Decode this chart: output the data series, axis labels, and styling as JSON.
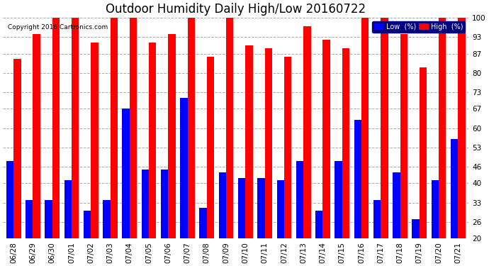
{
  "title": "Outdoor Humidity Daily High/Low 20160722",
  "copyright": "Copyright 2016 Cartronics.com",
  "labels": [
    "06/28",
    "06/29",
    "06/30",
    "07/01",
    "07/02",
    "07/03",
    "07/04",
    "07/05",
    "07/06",
    "07/07",
    "07/08",
    "07/09",
    "07/10",
    "07/11",
    "07/12",
    "07/13",
    "07/14",
    "07/15",
    "07/16",
    "07/17",
    "07/18",
    "07/19",
    "07/20",
    "07/21"
  ],
  "high": [
    85,
    94,
    100,
    100,
    91,
    100,
    100,
    91,
    94,
    100,
    86,
    100,
    90,
    89,
    86,
    97,
    92,
    89,
    100,
    100,
    94,
    82,
    100,
    100
  ],
  "low": [
    48,
    34,
    34,
    41,
    30,
    34,
    67,
    45,
    45,
    71,
    31,
    44,
    42,
    42,
    41,
    48,
    30,
    48,
    63,
    34,
    44,
    27,
    41,
    56
  ],
  "high_color": "#FF0000",
  "low_color": "#0000FF",
  "bg_color": "#FFFFFF",
  "grid_color": "#AAAAAA",
  "ymin": 20,
  "ymax": 100,
  "yticks": [
    20,
    26,
    33,
    40,
    46,
    53,
    60,
    67,
    73,
    80,
    87,
    93,
    100
  ],
  "bar_width": 0.38,
  "title_fontsize": 12,
  "tick_fontsize": 7.5,
  "legend_low_label": "Low  (%)",
  "legend_high_label": "High  (%)"
}
